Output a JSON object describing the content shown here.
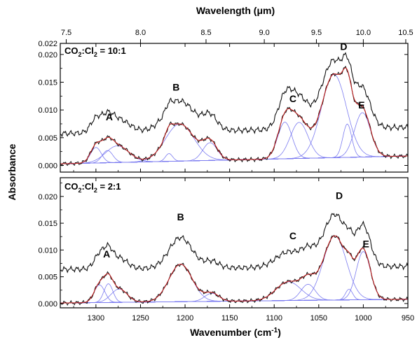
{
  "chart_data": {
    "type": "line",
    "x_axis": {
      "label": "Wavenumber (cm",
      "label_sup": "-1",
      "label_end": ")",
      "range": [
        1340,
        950
      ],
      "reversed": true,
      "ticks": [
        1300,
        1250,
        1200,
        1150,
        1100,
        1050,
        1000,
        950
      ],
      "tick_labels": [
        "1300",
        "1250",
        "1200",
        "1150",
        "1100",
        "1050",
        "1000",
        "950"
      ]
    },
    "top_axis": {
      "label_pre": "Wavelength (",
      "label_mu": "μ",
      "label_post": "m)",
      "ticks": [
        7.5,
        8.0,
        8.5,
        9.0,
        9.5,
        10.0,
        10.5
      ],
      "tick_labels": [
        "7.5",
        "8.0",
        "8.5",
        "9.0",
        "9.5",
        "10.0",
        "10.5"
      ]
    },
    "y_label": "Absorbance",
    "panels": [
      {
        "ratio_main": "CO",
        "ratio_sub1": "2",
        "ratio_mid": ":Cl",
        "ratio_sub2": "2",
        "ratio_end": " = 10:1",
        "ylim": [
          -0.0012,
          0.022
        ],
        "yticks": [
          0.0,
          0.005,
          0.01,
          0.015,
          0.02,
          0.022
        ],
        "ytick_labels": [
          "0.000",
          "0.005",
          "0.010",
          "0.015",
          "0.020",
          "0.022"
        ],
        "baseline": [
          0.0003,
          0.0017
        ],
        "offset": 0.0055,
        "peaks": [
          {
            "label": "A",
            "x": 1285,
            "y": 0.0081
          },
          {
            "label": "B",
            "x": 1210,
            "y": 0.0135
          },
          {
            "label": "C",
            "x": 1079,
            "y": 0.0114
          },
          {
            "label": "D",
            "x": 1022,
            "y": 0.0208
          },
          {
            "label": "E",
            "x": 1002,
            "y": 0.0103
          }
        ],
        "components": [
          {
            "c": 1300,
            "a": 0.0028,
            "w": 6
          },
          {
            "c": 1287,
            "a": 0.0022,
            "w": 6
          },
          {
            "c": 1276,
            "a": 0.003,
            "w": 13
          },
          {
            "c": 1218,
            "a": 0.0014,
            "w": 4
          },
          {
            "c": 1206,
            "a": 0.0067,
            "w": 16
          },
          {
            "c": 1172,
            "a": 0.0032,
            "w": 8
          },
          {
            "c": 1088,
            "a": 0.0066,
            "w": 8
          },
          {
            "c": 1072,
            "a": 0.0065,
            "w": 10
          },
          {
            "c": 1033,
            "a": 0.015,
            "w": 14
          },
          {
            "c": 1018,
            "a": 0.006,
            "w": 5
          },
          {
            "c": 1001,
            "a": 0.008,
            "w": 9
          }
        ]
      },
      {
        "ratio_main": "CO",
        "ratio_sub1": "2",
        "ratio_mid": ":Cl",
        "ratio_sub2": "2",
        "ratio_end": " = 2:1",
        "ylim": [
          -0.0008,
          0.0235
        ],
        "yticks": [
          0.0,
          0.005,
          0.01,
          0.015,
          0.02
        ],
        "ytick_labels": [
          "0.000",
          "0.005",
          "0.010",
          "0.015",
          "0.020"
        ],
        "baseline": [
          0.0001,
          0.0008
        ],
        "offset": 0.0063,
        "peaks": [
          {
            "label": "A",
            "x": 1288,
            "y": 0.0086
          },
          {
            "label": "B",
            "x": 1205,
            "y": 0.0155
          },
          {
            "label": "C",
            "x": 1079,
            "y": 0.012
          },
          {
            "label": "D",
            "x": 1027,
            "y": 0.0195
          },
          {
            "label": "E",
            "x": 997,
            "y": 0.0105
          }
        ],
        "components": [
          {
            "c": 1296,
            "a": 0.0033,
            "w": 6
          },
          {
            "c": 1286,
            "a": 0.0035,
            "w": 5
          },
          {
            "c": 1274,
            "a": 0.0025,
            "w": 9
          },
          {
            "c": 1205,
            "a": 0.007,
            "w": 13
          },
          {
            "c": 1170,
            "a": 0.0015,
            "w": 8
          },
          {
            "c": 1084,
            "a": 0.0035,
            "w": 14
          },
          {
            "c": 1062,
            "a": 0.003,
            "w": 8
          },
          {
            "c": 1032,
            "a": 0.012,
            "w": 13
          },
          {
            "c": 1016,
            "a": 0.002,
            "w": 4
          },
          {
            "c": 1000,
            "a": 0.009,
            "w": 8
          }
        ]
      }
    ]
  }
}
